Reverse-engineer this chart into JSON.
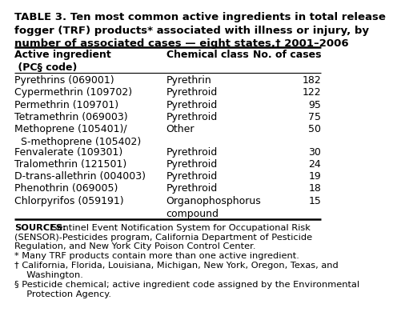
{
  "title": "TABLE 3. Ten most common active ingredients in total release\nfogger (TRF) products* associated with illness or injury, by\nnumber of associated cases — eight states,† 2001–2006",
  "col_headers": [
    "Active ingredient\n (PC§ code)",
    "Chemical class",
    "No. of cases"
  ],
  "rows": [
    [
      "Pyrethrins (069001)",
      "Pyrethrin",
      "182"
    ],
    [
      "Cypermethrin (109702)",
      "Pyrethroid",
      "122"
    ],
    [
      "Permethrin (109701)",
      "Pyrethroid",
      "95"
    ],
    [
      "Tetramethrin (069003)",
      "Pyrethroid",
      "75"
    ],
    [
      "Methoprene (105401)/\n  S-methoprene (105402)",
      "Other",
      "50"
    ],
    [
      "Fenvalerate (109301)",
      "Pyrethroid",
      "30"
    ],
    [
      "Tralomethrin (121501)",
      "Pyrethroid",
      "24"
    ],
    [
      "D-trans-allethrin (004003)",
      "Pyrethroid",
      "19"
    ],
    [
      "Phenothrin (069005)",
      "Pyrethroid",
      "18"
    ],
    [
      "Chlorpyrifos (059191)",
      "Organophosphorus\ncompound",
      "15"
    ]
  ],
  "footnotes": [
    [
      "SOURCES:",
      "  Sentinel Event Notification System for Occupational Risk\n(SENSOR)-Pesticides program, California Department of Pesticide\nRegulation, and New York City Poison Control Center."
    ],
    [
      "",
      "* Many TRF products contain more than one active ingredient."
    ],
    [
      "",
      "† California, Florida, Louisiana, Michigan, New York, Oregon, Texas, and\n  Washington."
    ],
    [
      "",
      "§ Pesticide chemical; active ingredient code assigned by the Environmental\n  Protection Agency."
    ]
  ],
  "bg_color": "#ffffff",
  "text_color": "#000000",
  "title_fontsize": 9.5,
  "header_fontsize": 9.0,
  "cell_fontsize": 9.0,
  "footnote_fontsize": 8.2
}
